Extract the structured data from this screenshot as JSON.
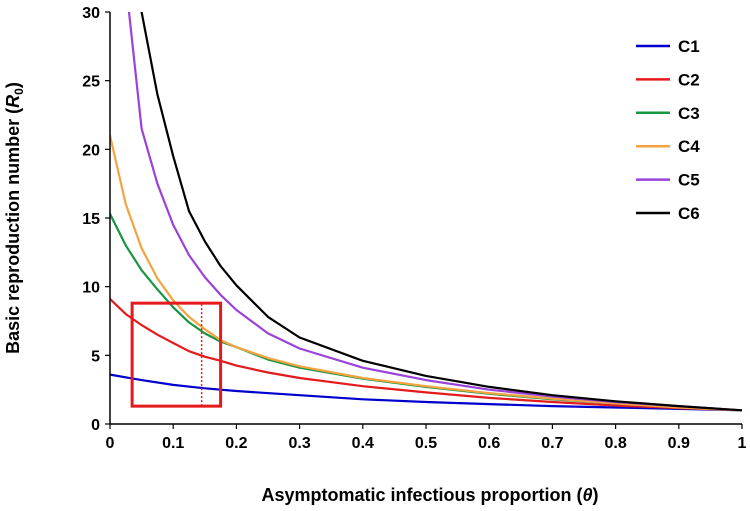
{
  "chart_data": {
    "type": "line",
    "title": "",
    "xlabel": "Asymptomatic infectious proportion (θ)",
    "xlabel_prefix": "Asymptomatic infectious proportion (",
    "xlabel_symbol": "θ",
    "xlabel_suffix": ")",
    "ylabel": "Basic reproduction number (R0)",
    "ylabel_prefix": "Basic reproduction number (",
    "ylabel_symbol": "R",
    "ylabel_sub": "0",
    "ylabel_suffix": ")",
    "xlim": [
      0,
      1
    ],
    "ylim": [
      0,
      30
    ],
    "x_ticks": [
      0,
      0.1,
      0.2,
      0.3,
      0.4,
      0.5,
      0.6,
      0.7,
      0.8,
      0.9,
      1
    ],
    "x_tick_labels": [
      "0",
      "0.1",
      "0.2",
      "0.3",
      "0.4",
      "0.5",
      "0.6",
      "0.7",
      "0.8",
      "0.9",
      "1"
    ],
    "y_ticks": [
      0,
      5,
      10,
      15,
      20,
      25,
      30
    ],
    "y_tick_labels": [
      "0",
      "5",
      "10",
      "15",
      "20",
      "25",
      "30"
    ],
    "grid": false,
    "legend_position": "top-right",
    "series": [
      {
        "name": "C1",
        "color": "#0000cc",
        "x": [
          0,
          0.05,
          0.1,
          0.15,
          0.2,
          0.3,
          0.4,
          0.5,
          0.6,
          0.7,
          0.8,
          0.9,
          1.0
        ],
        "y": [
          3.6,
          3.2,
          2.85,
          2.6,
          2.4,
          2.1,
          1.8,
          1.6,
          1.45,
          1.3,
          1.2,
          1.1,
          1.0
        ]
      },
      {
        "name": "C2",
        "color": "#e41a1c",
        "x": [
          0,
          0.025,
          0.05,
          0.075,
          0.1,
          0.125,
          0.15,
          0.175,
          0.2,
          0.25,
          0.3,
          0.4,
          0.5,
          0.6,
          0.7,
          0.8,
          0.9,
          1.0
        ],
        "y": [
          9.1,
          8.0,
          7.2,
          6.5,
          5.9,
          5.3,
          4.9,
          4.6,
          4.25,
          3.75,
          3.35,
          2.75,
          2.3,
          1.9,
          1.6,
          1.35,
          1.15,
          1.0
        ]
      },
      {
        "name": "C3",
        "color": "#1a9641",
        "x": [
          0,
          0.025,
          0.05,
          0.075,
          0.1,
          0.125,
          0.15,
          0.175,
          0.2,
          0.25,
          0.3,
          0.4,
          0.5,
          0.6,
          0.7,
          0.8,
          0.9,
          1.0
        ],
        "y": [
          15.3,
          13.0,
          11.2,
          9.8,
          8.5,
          7.4,
          6.6,
          6.0,
          5.6,
          4.7,
          4.1,
          3.3,
          2.7,
          2.2,
          1.8,
          1.5,
          1.2,
          1.0
        ]
      },
      {
        "name": "C4",
        "color": "#f4a340",
        "x": [
          0,
          0.025,
          0.05,
          0.075,
          0.1,
          0.125,
          0.15,
          0.175,
          0.2,
          0.25,
          0.3,
          0.4,
          0.5,
          0.6,
          0.7,
          0.8,
          0.9,
          1.0
        ],
        "y": [
          21.0,
          16.0,
          12.8,
          10.6,
          9.0,
          7.8,
          6.9,
          6.1,
          5.6,
          4.8,
          4.2,
          3.35,
          2.75,
          2.25,
          1.85,
          1.5,
          1.2,
          1.0
        ]
      },
      {
        "name": "C5",
        "color": "#9b42d9",
        "x": [
          0.03,
          0.05,
          0.075,
          0.1,
          0.125,
          0.15,
          0.175,
          0.2,
          0.25,
          0.3,
          0.4,
          0.5,
          0.6,
          0.7,
          0.8,
          0.9,
          1.0
        ],
        "y": [
          30.0,
          21.5,
          17.5,
          14.5,
          12.3,
          10.7,
          9.4,
          8.3,
          6.6,
          5.5,
          4.1,
          3.2,
          2.5,
          2.0,
          1.6,
          1.3,
          1.0
        ]
      },
      {
        "name": "C6",
        "color": "#000000",
        "x": [
          0.05,
          0.075,
          0.1,
          0.125,
          0.15,
          0.175,
          0.2,
          0.25,
          0.3,
          0.4,
          0.5,
          0.6,
          0.7,
          0.8,
          0.9,
          1.0
        ],
        "y": [
          30.0,
          24.0,
          19.5,
          15.5,
          13.3,
          11.5,
          10.1,
          7.8,
          6.3,
          4.6,
          3.5,
          2.7,
          2.1,
          1.65,
          1.3,
          1.0
        ]
      }
    ],
    "annotations": {
      "highlight_box": {
        "x": [
          0.035,
          0.175
        ],
        "y": [
          1.3,
          8.8
        ],
        "color": "#e41a1c"
      },
      "dotted_line": {
        "x": 0.145,
        "y": [
          1.3,
          8.8
        ],
        "color": "#e41a1c"
      }
    }
  }
}
